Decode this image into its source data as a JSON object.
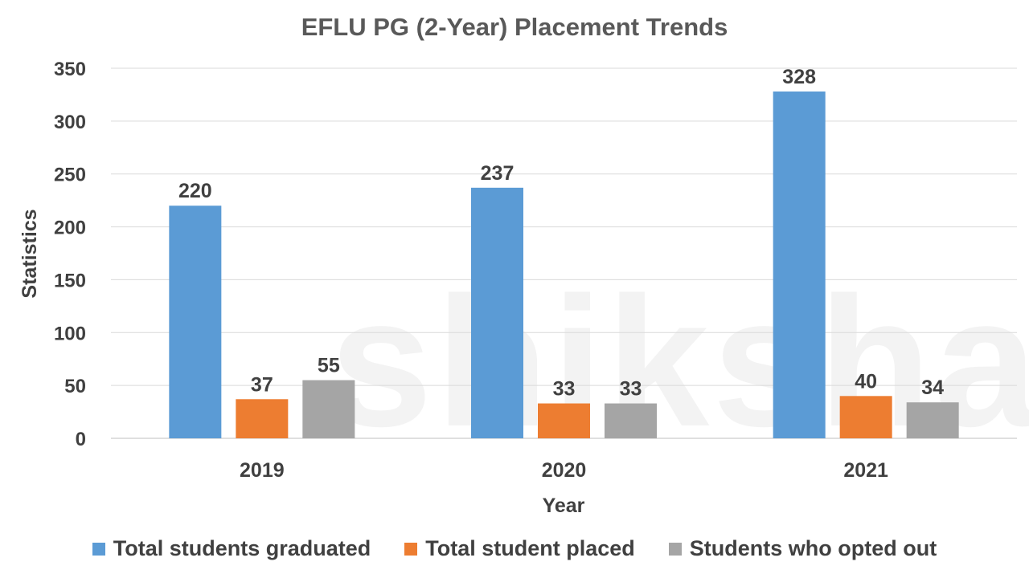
{
  "chart_data": {
    "type": "bar",
    "title": "EFLU PG (2-Year) Placement Trends",
    "xlabel": "Year",
    "ylabel": "Statistics",
    "categories": [
      "2019",
      "2020",
      "2021"
    ],
    "series": [
      {
        "name": "Total students graduated",
        "color": "#5B9BD5",
        "values": [
          220,
          237,
          328
        ]
      },
      {
        "name": "Total student placed",
        "color": "#ED7D31",
        "values": [
          37,
          33,
          40
        ]
      },
      {
        "name": "Students who opted out",
        "color": "#A5A5A5",
        "values": [
          55,
          33,
          34
        ]
      }
    ],
    "ylim": [
      0,
      350
    ],
    "yticks": [
      0,
      50,
      100,
      150,
      200,
      250,
      300,
      350
    ],
    "grid": true,
    "legend_position": "bottom",
    "data_labels": true
  },
  "watermark": {
    "text": "shiksha"
  }
}
